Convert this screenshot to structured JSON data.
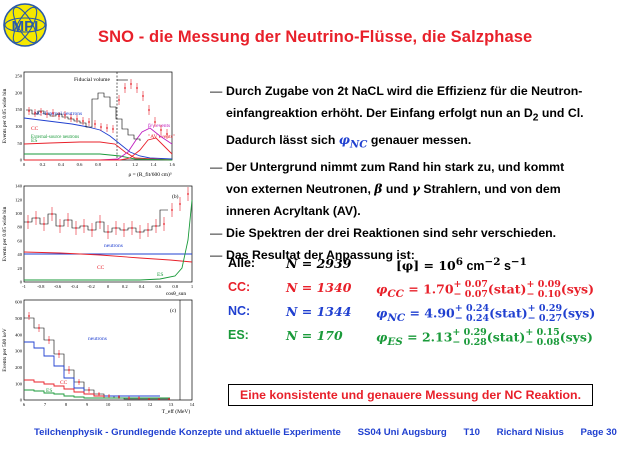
{
  "logo": {
    "text": "MPI"
  },
  "title": "SNO - die Messung der Neutrino-Flüsse, die Salzphase",
  "bullets": [
    {
      "lines": [
        "Durch Zugabe von 2t NaCL wird die Effizienz für die Neutron-",
        "einfangreaktion erhöht. Der Einfang erfolgt nun an D",
        "Dadurch lässt sich ",
        " genauer messen."
      ],
      "sub": "2",
      "after_sub": " und Cl.",
      "phi": "φ",
      "phi_sub": "NC"
    },
    {
      "lines": [
        "Der Untergrund nimmt zum Rand hin stark zu, und kommt",
        "von externen Neutronen, ",
        " und ",
        " Strahlern, und von dem",
        "inneren Acryltank (AV)."
      ],
      "beta": "β",
      "gamma": "γ"
    },
    {
      "lines": [
        "Die Spektren der drei Reaktionen sind sehr verschieden."
      ]
    },
    {
      "lines": [
        "Das Resultat der Anpassung ist:"
      ]
    }
  ],
  "results": {
    "alle": {
      "label": "Alle:",
      "n": "N = 2939",
      "phi": "[φ] = 10",
      "exp": "6",
      "unit": " cm",
      "unit_exp": "−2",
      "unit2": " s",
      "unit2_exp": "−1"
    },
    "rows": [
      {
        "label": "CC:",
        "n": "N = 1340",
        "phi": "φ",
        "phi_sub": "CC",
        "value": " = 1.70",
        "stat_up": "+ 0.07",
        "stat_dn": "− 0.07",
        "stat": "(stat)",
        "sys_up": "+ 0.09",
        "sys_dn": "− 0.10",
        "sys": "(sys)",
        "color": "#e8202a"
      },
      {
        "label": "NC:",
        "n": "N = 1344",
        "phi": "φ",
        "phi_sub": "NC",
        "value": " = 4.90",
        "stat_up": "+ 0.24",
        "stat_dn": "− 0.24",
        "stat": "(stat)",
        "sys_up": "+ 0.29",
        "sys_dn": "− 0.27",
        "sys": "(sys)",
        "color": "#2040d0"
      },
      {
        "label": "ES:",
        "n": "N =  170",
        "phi": "φ",
        "phi_sub": "ES",
        "value": " = 2.13",
        "stat_up": "+ 0.29",
        "stat_dn": "− 0.28",
        "stat": "(stat)",
        "sys_up": "+ 0.15",
        "sys_dn": "− 0.08",
        "sys": "(sys)",
        "color": "#1a9a3a"
      }
    ]
  },
  "conclusion": "Eine konsistente und genauere Messung der NC Reaktion.",
  "footer": {
    "course": "Teilchenphysik - Grundlegende Konzepte und aktuelle Experimente",
    "term": "SS04 Uni Augsburg",
    "slide": "T10",
    "author": "Richard Nisius",
    "page": "Page 30"
  },
  "panels": {
    "p1": {
      "ylabel": "Events per 0.05 wide bin",
      "xlabel": "ρ = (R_fit/600 cm)³",
      "xticks": [
        "0",
        "0.2",
        "0.4",
        "0.6",
        "0.8",
        "1",
        "1.2",
        "1.4",
        "1.6"
      ],
      "yticks": [
        "0",
        "50",
        "100",
        "150",
        "200",
        "250"
      ],
      "labels": {
        "fiducial": "Fiducial volume",
        "nc": "NC+Internal neutrons",
        "cc": "CC",
        "es": "ES",
        "ext": "External-source neutrons",
        "bg": "β/γ events",
        "av": "\"AV events\""
      }
    },
    "p2": {
      "ylabel": "Events per 0.05 wide bin",
      "xlabel": "cosθ_sun",
      "xticks": [
        "-1",
        "-0.8",
        "-0.6",
        "-0.4",
        "-0.2",
        "0",
        "0.2",
        "0.4",
        "0.6",
        "0.8",
        "1"
      ],
      "yticks": [
        "0",
        "20",
        "40",
        "60",
        "80",
        "100",
        "120",
        "140"
      ],
      "labels": {
        "tag": "(b)",
        "neutrons": "neutrons",
        "cc": "CC",
        "es": "ES"
      }
    },
    "p3": {
      "ylabel": "Events per 500 keV",
      "xlabel": "T_eff  (MeV)",
      "xticks": [
        "6",
        "7",
        "8",
        "9",
        "10",
        "11",
        "12",
        "13",
        "14"
      ],
      "yticks": [
        "0",
        "100",
        "200",
        "300",
        "400",
        "500",
        "600"
      ],
      "labels": {
        "tag": "(c)",
        "neutrons": "neutrons",
        "cc": "CC",
        "es": "ES"
      }
    }
  },
  "colors": {
    "title": "#e8202a",
    "blue": "#2040d0",
    "green": "#1a9a3a",
    "magenta": "#c020c0",
    "logo_fill": "#f5e800",
    "logo_ring": "#2a5aa8"
  }
}
